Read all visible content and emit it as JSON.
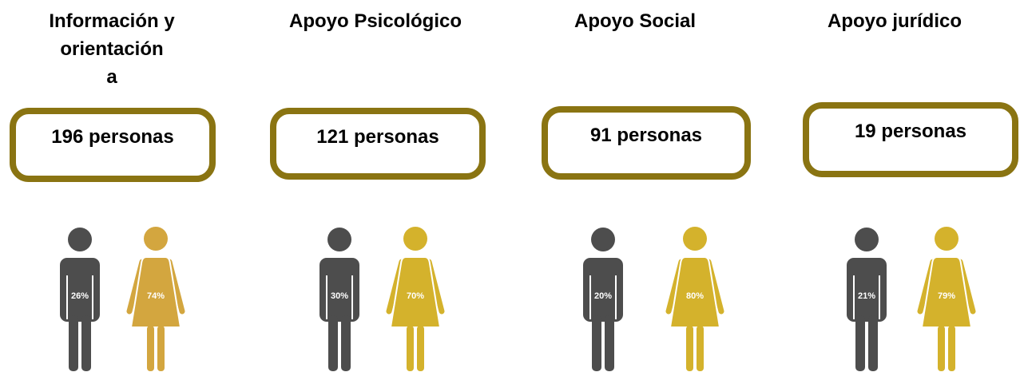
{
  "panels": [
    {
      "title_lines": [
        "Información y",
        "orientación",
        "a"
      ],
      "count": "196 personas",
      "male": "26%",
      "female": "74%"
    },
    {
      "title_lines": [
        "Apoyo Psicológico"
      ],
      "count": "121 personas",
      "male": "30%",
      "female": "70%"
    },
    {
      "title_lines": [
        "Apoyo Social"
      ],
      "count": "91 personas",
      "male": "20%",
      "female": "80%"
    },
    {
      "title_lines": [
        "Apoyo jurídico"
      ],
      "count": "19 personas",
      "male": "21%",
      "female": "79%"
    }
  ]
}
